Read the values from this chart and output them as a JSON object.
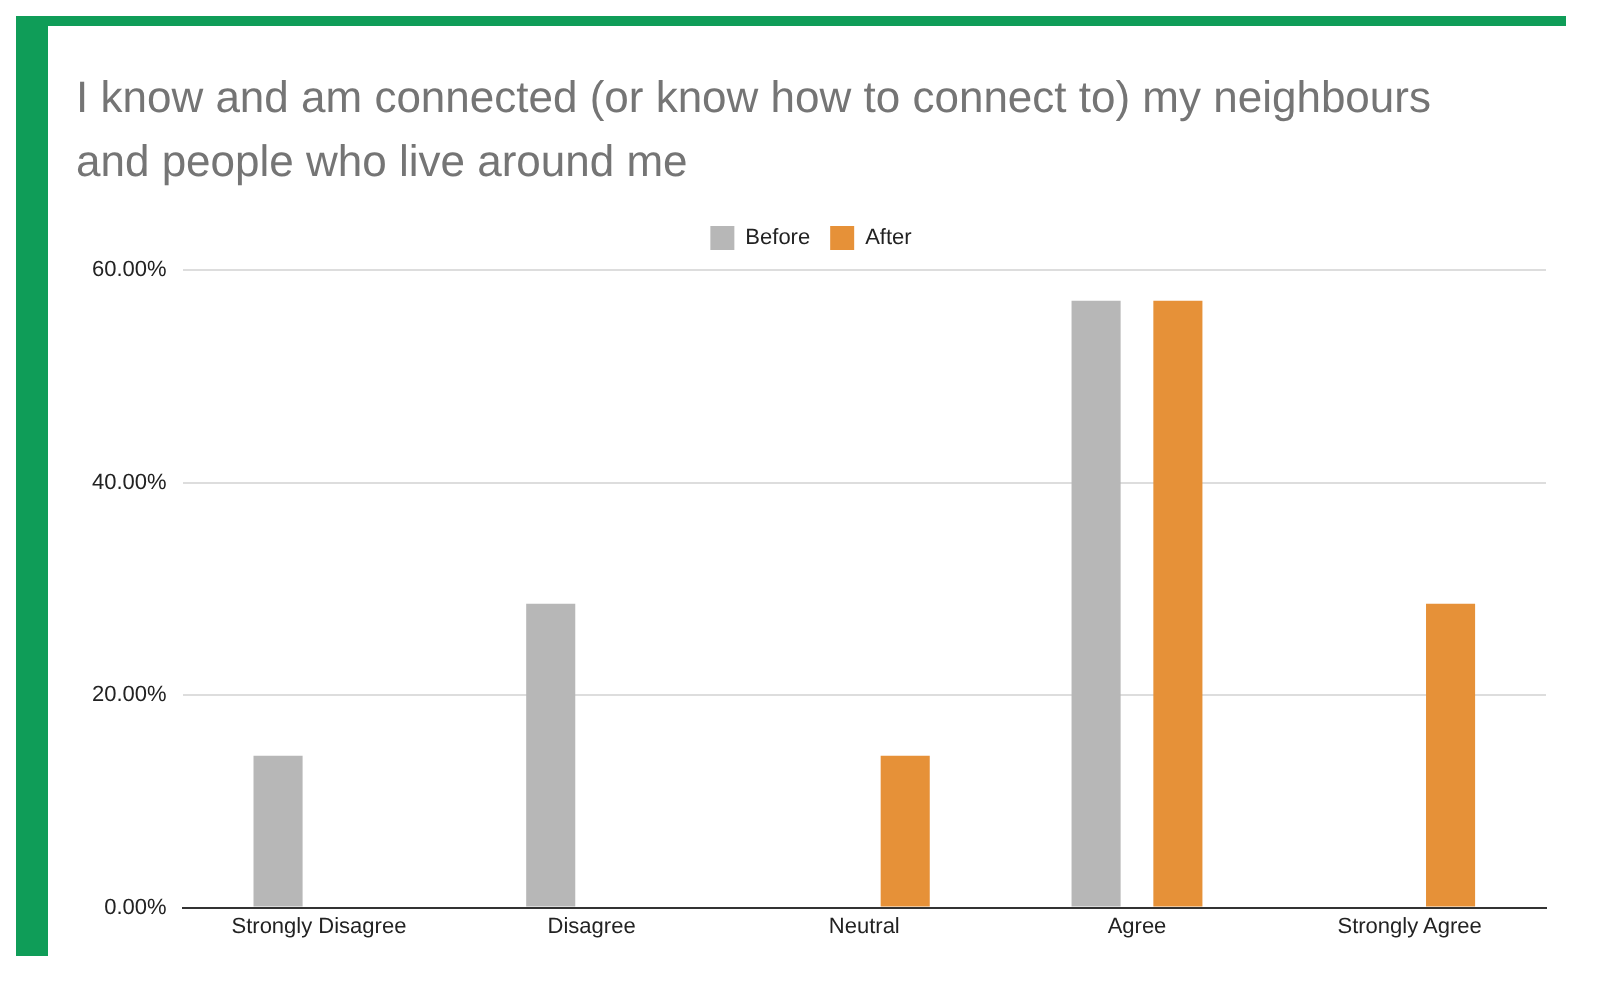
{
  "chart_data": {
    "type": "bar",
    "title": "I know and am connected (or know how to connect to) my neighbours and people who live around me",
    "categories": [
      "Strongly Disagree",
      "Disagree",
      "Neutral",
      "Agree",
      "Strongly Agree"
    ],
    "series": [
      {
        "name": "Before",
        "color": "#b7b7b7",
        "values": [
          14.3,
          28.6,
          0,
          57.1,
          0
        ]
      },
      {
        "name": "After",
        "color": "#e69138",
        "values": [
          0,
          0,
          14.3,
          57.1,
          28.6
        ]
      }
    ],
    "ylim": [
      0,
      60
    ],
    "yticks": [
      {
        "value": 0,
        "label": "0.00%"
      },
      {
        "value": 20,
        "label": "20.00%"
      },
      {
        "value": 40,
        "label": "40.00%"
      },
      {
        "value": 60,
        "label": "60.00%"
      }
    ],
    "grid": "y",
    "legend": "top"
  }
}
